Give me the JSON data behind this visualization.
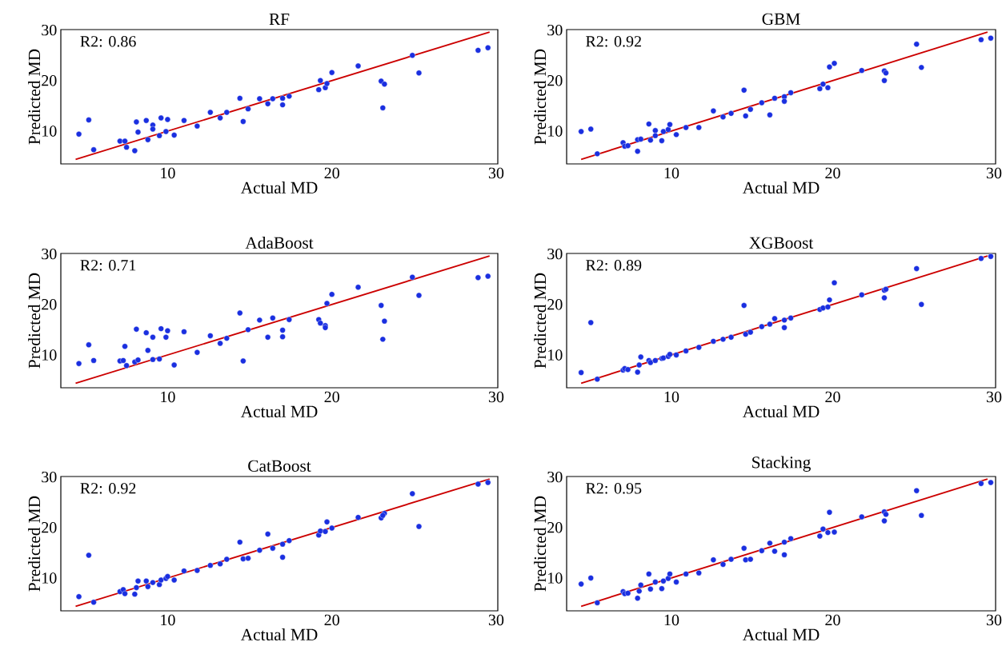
{
  "chart_data": [
    {
      "type": "scatter",
      "title": "RF",
      "xlabel": "Actual MD",
      "ylabel": "Predicted MD",
      "annotations": [
        "R2: 0.86"
      ],
      "marker": "circle",
      "xlim": [
        3.5,
        30.1
      ],
      "ylim": [
        3.5,
        30.1
      ],
      "xticks": [
        10,
        20,
        30
      ],
      "yticks": [
        10,
        20,
        30
      ],
      "series": [
        {
          "color": "#1a2fe0",
          "x": [
            4.6,
            5.2,
            5.5,
            7.1,
            7.4,
            7.5,
            8.0,
            8.1,
            8.2,
            8.7,
            8.8,
            9.1,
            9.1,
            9.5,
            9.6,
            9.9,
            10.0,
            10.4,
            11.0,
            11.8,
            12.6,
            13.2,
            13.6,
            14.4,
            14.6,
            14.9,
            15.6,
            16.1,
            16.4,
            17.0,
            17.0,
            17.4,
            19.2,
            19.3,
            19.6,
            19.7,
            20.0,
            21.6,
            23.0,
            23.2,
            23.1,
            24.9,
            25.3,
            28.9,
            29.5
          ],
          "values": [
            9.4,
            12.2,
            6.3,
            8.0,
            8.0,
            6.8,
            6.1,
            11.8,
            9.8,
            12.1,
            8.3,
            11.2,
            10.4,
            9.1,
            12.6,
            9.9,
            12.3,
            9.2,
            12.1,
            11.0,
            13.7,
            12.6,
            13.7,
            16.5,
            11.9,
            14.4,
            16.4,
            15.4,
            16.4,
            16.5,
            15.2,
            16.9,
            18.2,
            20.0,
            18.6,
            19.4,
            21.6,
            22.9,
            19.9,
            19.3,
            14.6,
            25.0,
            21.5,
            26.0,
            26.5
          ]
        },
        {
          "type": "line",
          "color": "#cc0000",
          "marker": "none",
          "line_style": "solid",
          "x": [
            4.4,
            29.6
          ],
          "values": [
            4.4,
            29.6
          ]
        }
      ]
    },
    {
      "type": "scatter",
      "title": "GBM",
      "xlabel": "Actual MD",
      "ylabel": "Predicted MD",
      "annotations": [
        "R2: 0.92"
      ],
      "marker": "circle",
      "xlim": [
        3.5,
        30.1
      ],
      "ylim": [
        3.5,
        30.1
      ],
      "xticks": [
        10,
        20,
        30
      ],
      "yticks": [
        10,
        20,
        30
      ],
      "series": [
        {
          "color": "#1a2fe0",
          "x": [
            4.4,
            5.0,
            5.4,
            7.0,
            7.1,
            7.3,
            7.9,
            7.9,
            8.1,
            8.6,
            8.7,
            9.0,
            9.0,
            9.4,
            9.5,
            9.8,
            9.9,
            10.3,
            10.9,
            11.7,
            12.6,
            13.2,
            13.7,
            14.5,
            14.6,
            14.9,
            15.6,
            16.1,
            16.4,
            17.0,
            17.0,
            17.4,
            19.2,
            19.4,
            19.7,
            19.8,
            20.1,
            21.8,
            23.2,
            23.2,
            23.3,
            25.2,
            25.5,
            29.2,
            29.8
          ],
          "values": [
            9.9,
            10.4,
            5.5,
            7.7,
            7.0,
            7.1,
            6.0,
            8.3,
            8.4,
            11.4,
            8.2,
            10.1,
            9.1,
            8.1,
            9.9,
            10.3,
            11.3,
            9.3,
            10.7,
            10.7,
            14.0,
            12.8,
            13.5,
            18.1,
            13.0,
            14.3,
            15.6,
            13.2,
            16.5,
            16.8,
            15.9,
            17.6,
            18.4,
            19.3,
            18.6,
            22.7,
            23.4,
            22.0,
            20.0,
            21.9,
            21.5,
            27.2,
            22.6,
            28.1,
            28.4
          ]
        },
        {
          "type": "line",
          "color": "#cc0000",
          "marker": "none",
          "line_style": "solid",
          "x": [
            4.4,
            29.6
          ],
          "values": [
            4.4,
            29.6
          ]
        }
      ]
    },
    {
      "type": "scatter",
      "title": "AdaBoost",
      "xlabel": "Actual MD",
      "ylabel": "Predicted MD",
      "annotations": [
        "R2: 0.71"
      ],
      "marker": "circle",
      "xlim": [
        3.5,
        30.1
      ],
      "ylim": [
        3.5,
        30.1
      ],
      "xticks": [
        10,
        20,
        30
      ],
      "yticks": [
        10,
        20,
        30
      ],
      "series": [
        {
          "color": "#1a2fe0",
          "x": [
            4.6,
            5.2,
            5.5,
            7.1,
            7.3,
            7.4,
            7.5,
            8.0,
            8.1,
            8.2,
            8.7,
            8.8,
            9.1,
            9.1,
            9.5,
            9.6,
            9.9,
            10.0,
            10.4,
            11.0,
            11.8,
            12.6,
            13.2,
            13.6,
            14.4,
            14.6,
            14.9,
            15.6,
            16.1,
            16.4,
            17.0,
            17.0,
            17.4,
            19.2,
            19.3,
            19.6,
            19.6,
            19.7,
            20.0,
            21.6,
            23.0,
            23.2,
            23.1,
            24.9,
            25.3,
            28.9,
            29.5
          ],
          "values": [
            8.3,
            12.0,
            8.9,
            8.8,
            8.9,
            11.7,
            7.9,
            8.6,
            15.1,
            9.0,
            14.4,
            10.9,
            13.5,
            9.1,
            9.2,
            15.2,
            13.5,
            14.8,
            8.0,
            14.6,
            10.5,
            13.8,
            12.3,
            13.3,
            18.3,
            8.8,
            15.0,
            16.9,
            13.5,
            17.3,
            14.9,
            13.6,
            17.0,
            17.0,
            16.3,
            15.8,
            15.4,
            20.2,
            22.0,
            23.4,
            19.8,
            16.7,
            13.1,
            25.4,
            21.8,
            25.3,
            25.6
          ]
        },
        {
          "type": "line",
          "color": "#cc0000",
          "marker": "none",
          "line_style": "solid",
          "x": [
            4.4,
            29.6
          ],
          "values": [
            4.4,
            29.6
          ]
        }
      ]
    },
    {
      "type": "scatter",
      "title": "XGBoost",
      "xlabel": "Actual MD",
      "ylabel": "Predicted MD",
      "annotations": [
        "R2: 0.89"
      ],
      "marker": "circle",
      "xlim": [
        3.5,
        30.1
      ],
      "ylim": [
        3.5,
        30.1
      ],
      "xticks": [
        10,
        20,
        30
      ],
      "yticks": [
        10,
        20,
        30
      ],
      "series": [
        {
          "color": "#1a2fe0",
          "x": [
            4.4,
            5.0,
            5.4,
            7.0,
            7.1,
            7.3,
            7.9,
            8.0,
            8.1,
            8.6,
            8.7,
            9.0,
            9.4,
            9.5,
            9.8,
            9.9,
            10.3,
            10.9,
            11.7,
            12.6,
            13.2,
            13.7,
            14.5,
            14.6,
            14.9,
            15.6,
            16.1,
            16.4,
            17.0,
            17.0,
            17.4,
            19.2,
            19.4,
            19.7,
            19.8,
            20.1,
            21.8,
            23.2,
            23.2,
            23.3,
            25.2,
            25.5,
            29.2,
            29.8
          ],
          "values": [
            6.5,
            16.4,
            5.2,
            7.0,
            7.3,
            7.1,
            6.6,
            8.0,
            9.6,
            8.9,
            8.5,
            8.9,
            9.3,
            9.4,
            9.7,
            10.1,
            10.0,
            10.8,
            11.5,
            12.7,
            13.1,
            13.5,
            19.8,
            14.1,
            14.5,
            15.6,
            16.1,
            17.2,
            16.9,
            15.4,
            17.3,
            19.0,
            19.3,
            19.5,
            20.9,
            24.3,
            21.9,
            21.3,
            22.8,
            23.0,
            27.1,
            20.0,
            29.1,
            29.5
          ]
        },
        {
          "type": "line",
          "color": "#cc0000",
          "marker": "none",
          "line_style": "solid",
          "x": [
            4.4,
            29.6
          ],
          "values": [
            4.4,
            29.6
          ]
        }
      ]
    },
    {
      "type": "scatter",
      "title": "CatBoost",
      "xlabel": "Actual MD",
      "ylabel": "Predicted MD",
      "annotations": [
        "R2: 0.92"
      ],
      "marker": "circle",
      "xlim": [
        3.5,
        30.1
      ],
      "ylim": [
        3.5,
        30.1
      ],
      "xticks": [
        10,
        20,
        30
      ],
      "yticks": [
        10,
        20,
        30
      ],
      "series": [
        {
          "color": "#1a2fe0",
          "x": [
            4.6,
            5.2,
            5.5,
            7.1,
            7.3,
            7.4,
            8.0,
            8.1,
            8.2,
            8.7,
            8.8,
            9.1,
            9.5,
            9.6,
            9.9,
            10.0,
            10.4,
            11.0,
            11.8,
            12.6,
            13.2,
            13.6,
            14.4,
            14.6,
            14.9,
            15.6,
            16.1,
            16.4,
            17.0,
            17.0,
            17.4,
            19.2,
            19.3,
            19.6,
            19.7,
            20.0,
            21.6,
            23.0,
            23.2,
            23.1,
            24.9,
            25.3,
            28.9,
            29.5
          ],
          "values": [
            6.3,
            14.5,
            5.2,
            7.3,
            7.7,
            6.9,
            6.8,
            8.1,
            9.4,
            9.4,
            8.3,
            9.1,
            8.7,
            9.6,
            9.9,
            10.3,
            9.6,
            11.4,
            11.5,
            12.5,
            12.8,
            13.7,
            17.1,
            13.8,
            13.9,
            15.5,
            18.7,
            15.9,
            16.7,
            14.1,
            17.4,
            18.5,
            19.3,
            19.2,
            21.1,
            19.9,
            22.0,
            21.9,
            22.8,
            22.4,
            26.7,
            20.2,
            28.6,
            28.9
          ]
        },
        {
          "type": "line",
          "color": "#cc0000",
          "marker": "none",
          "line_style": "solid",
          "x": [
            4.4,
            29.6
          ],
          "values": [
            4.4,
            29.6
          ]
        }
      ]
    },
    {
      "type": "scatter",
      "title": "Stacking",
      "xlabel": "Actual MD",
      "ylabel": "Predicted MD",
      "annotations": [
        "R2: 0.95"
      ],
      "marker": "circle",
      "xlim": [
        3.5,
        30.1
      ],
      "ylim": [
        3.5,
        30.1
      ],
      "xticks": [
        10,
        20,
        30
      ],
      "yticks": [
        10,
        20,
        30
      ],
      "series": [
        {
          "color": "#1a2fe0",
          "x": [
            4.4,
            5.0,
            5.4,
            7.0,
            7.1,
            7.3,
            7.9,
            8.0,
            8.1,
            8.6,
            8.7,
            9.0,
            9.4,
            9.5,
            9.8,
            9.9,
            10.3,
            10.9,
            11.7,
            12.6,
            13.2,
            13.7,
            14.5,
            14.6,
            14.9,
            15.6,
            16.1,
            16.4,
            17.0,
            17.0,
            17.4,
            19.2,
            19.4,
            19.7,
            19.8,
            20.1,
            21.8,
            23.2,
            23.2,
            23.3,
            25.2,
            25.5,
            29.2,
            29.8
          ],
          "values": [
            8.8,
            10.0,
            5.1,
            7.3,
            6.9,
            7.0,
            6.0,
            7.4,
            8.6,
            10.8,
            7.8,
            9.2,
            7.9,
            9.4,
            9.9,
            10.8,
            9.2,
            10.8,
            11.0,
            13.6,
            12.7,
            13.7,
            15.9,
            13.6,
            13.7,
            15.4,
            16.9,
            15.3,
            17.1,
            14.6,
            17.8,
            18.3,
            19.7,
            19.0,
            23.0,
            19.1,
            22.1,
            21.3,
            23.1,
            22.6,
            27.3,
            22.4,
            28.7,
            28.9
          ]
        },
        {
          "type": "line",
          "color": "#cc0000",
          "marker": "none",
          "line_style": "solid",
          "x": [
            4.4,
            29.6
          ],
          "values": [
            4.4,
            29.6
          ]
        }
      ]
    }
  ]
}
